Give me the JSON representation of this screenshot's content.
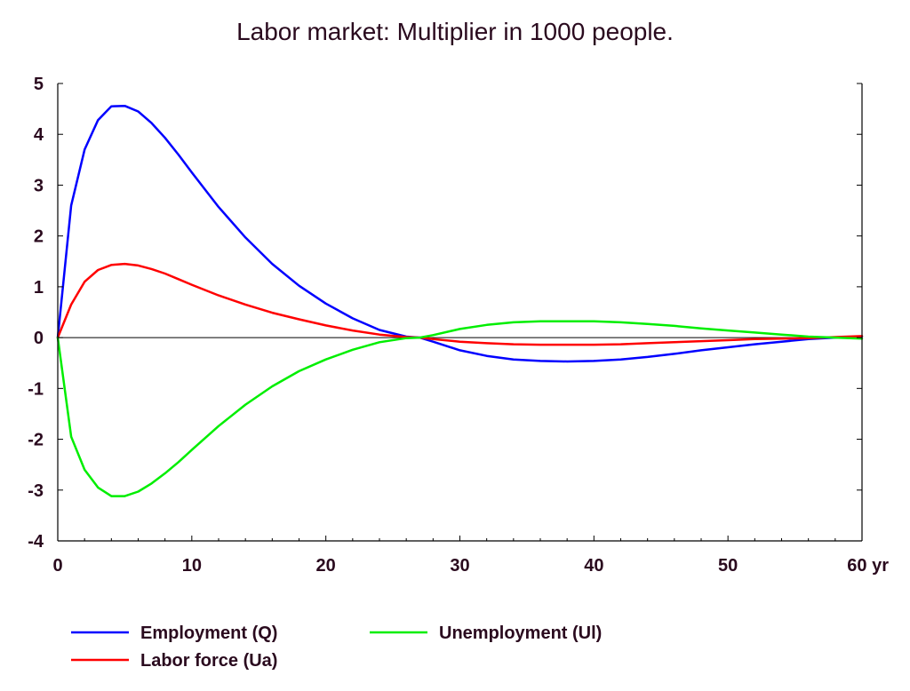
{
  "chart_data": {
    "type": "line",
    "title": "Labor market: Multiplier in 1000 people.",
    "xlabel": "",
    "ylabel": "",
    "xlim": [
      0,
      60
    ],
    "ylim": [
      -4,
      5
    ],
    "x_ticks": [
      0,
      10,
      20,
      30,
      40,
      50,
      60
    ],
    "x_tick_labels": [
      "0",
      "10",
      "20",
      "30",
      "40",
      "50",
      "60 yr"
    ],
    "y_ticks": [
      5,
      4,
      3,
      2,
      1,
      0,
      -1,
      -2,
      -3,
      -4
    ],
    "y_tick_labels": [
      "5",
      "4",
      "3",
      "2",
      "1",
      "0",
      "-1",
      "-2",
      "-3",
      "-4"
    ],
    "grid": false,
    "zero_line": true,
    "legend_position": "bottom",
    "x": [
      0,
      1,
      2,
      3,
      4,
      5,
      6,
      7,
      8,
      9,
      10,
      12,
      14,
      16,
      18,
      20,
      22,
      24,
      26,
      27,
      28,
      30,
      32,
      34,
      36,
      38,
      40,
      42,
      44,
      46,
      48,
      50,
      52,
      54,
      56,
      58,
      60
    ],
    "series": [
      {
        "name": "Employment (Q)",
        "color": "#0000ff",
        "values": [
          0,
          2.6,
          3.7,
          4.28,
          4.55,
          4.56,
          4.45,
          4.22,
          3.93,
          3.6,
          3.25,
          2.57,
          1.97,
          1.45,
          1.02,
          0.67,
          0.38,
          0.15,
          0.02,
          0,
          -0.08,
          -0.25,
          -0.36,
          -0.43,
          -0.46,
          -0.47,
          -0.46,
          -0.43,
          -0.38,
          -0.32,
          -0.25,
          -0.19,
          -0.13,
          -0.08,
          -0.03,
          0,
          0.02
        ]
      },
      {
        "name": "Labor force (Ua)",
        "color": "#ff0000",
        "values": [
          0,
          0.65,
          1.1,
          1.33,
          1.43,
          1.45,
          1.42,
          1.35,
          1.26,
          1.15,
          1.04,
          0.83,
          0.65,
          0.49,
          0.36,
          0.24,
          0.14,
          0.06,
          0.01,
          0,
          -0.03,
          -0.08,
          -0.11,
          -0.13,
          -0.14,
          -0.14,
          -0.14,
          -0.13,
          -0.11,
          -0.09,
          -0.07,
          -0.05,
          -0.03,
          -0.02,
          -0.01,
          0.01,
          0.03
        ]
      },
      {
        "name": "Unemployment (Ul)",
        "color": "#00ee00",
        "values": [
          0,
          -1.95,
          -2.6,
          -2.95,
          -3.12,
          -3.12,
          -3.03,
          -2.87,
          -2.67,
          -2.45,
          -2.21,
          -1.74,
          -1.32,
          -0.96,
          -0.66,
          -0.43,
          -0.24,
          -0.09,
          -0.01,
          0,
          0.05,
          0.17,
          0.25,
          0.3,
          0.32,
          0.32,
          0.32,
          0.3,
          0.27,
          0.23,
          0.18,
          0.14,
          0.1,
          0.06,
          0.02,
          0,
          -0.02
        ]
      }
    ]
  }
}
